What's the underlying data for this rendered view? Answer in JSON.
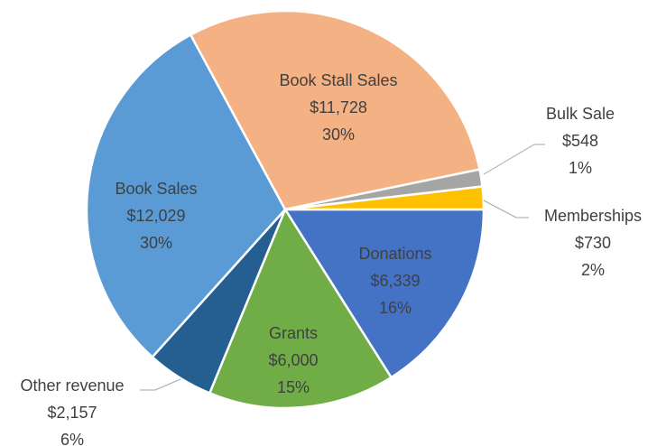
{
  "chart_data": {
    "type": "pie",
    "categories": [
      "Donations",
      "Grants",
      "Other revenue",
      "Book Sales",
      "Book Stall Sales",
      "Bulk Sale",
      "Memberships"
    ],
    "values": [
      6339,
      6000,
      2157,
      12029,
      11728,
      548,
      730
    ],
    "value_labels": [
      "$6,339",
      "$6,000",
      "$2,157",
      "$12,029",
      "$11,728",
      "$548",
      "$730"
    ],
    "percent_labels": [
      "16%",
      "15%",
      "6%",
      "30%",
      "30%",
      "1%",
      "2%"
    ],
    "colors": [
      "#4472c4",
      "#70ad47",
      "#255e91",
      "#5b9bd5",
      "#f4b183",
      "#a5a5a5",
      "#ffc000"
    ]
  }
}
